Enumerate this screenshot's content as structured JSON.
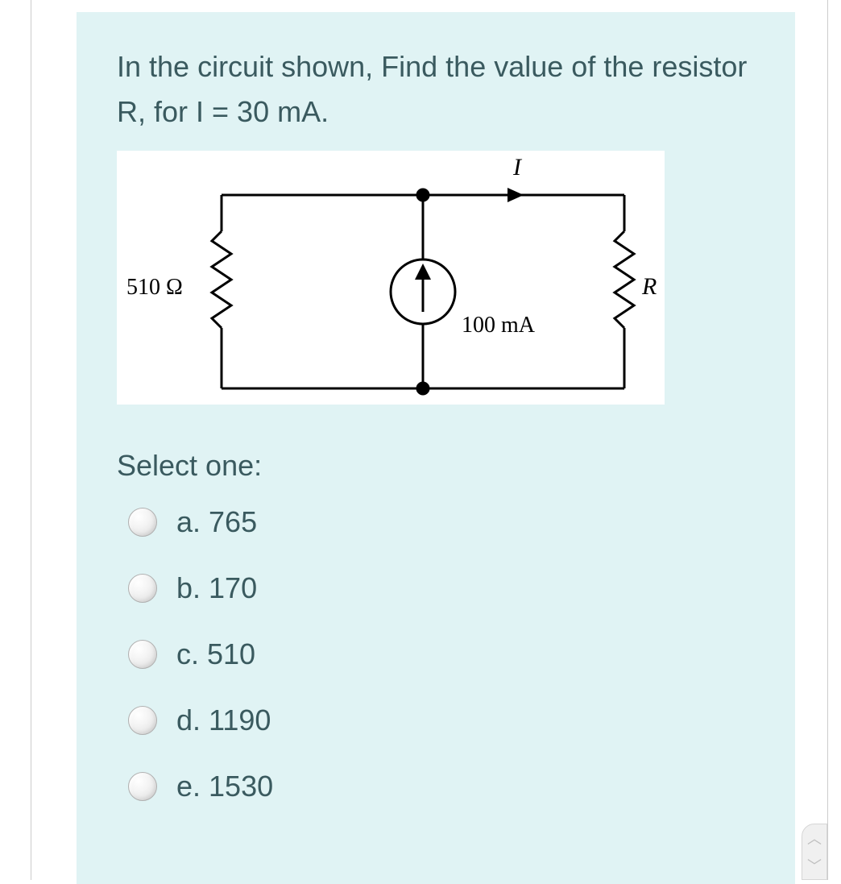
{
  "question": {
    "text": "In the circuit shown, Find the value of the resistor R, for I = 30 mA.",
    "text_color": "#3a5a5f",
    "text_fontsize": 36,
    "card_background": "#e0f3f4"
  },
  "diagram": {
    "type": "circuit",
    "background_color": "#ffffff",
    "stroke_color": "#000000",
    "stroke_width": 3,
    "labels": {
      "left_resistor": "510 Ω",
      "right_resistor": "R",
      "source": "100 mA",
      "current_arrow": "I"
    },
    "label_font": "serif",
    "label_fontsize_main": 26,
    "label_fontsize_italic": 28
  },
  "select_label": "Select one:",
  "options": [
    {
      "letter": "a",
      "value": "765",
      "selected": false
    },
    {
      "letter": "b",
      "value": "170",
      "selected": false
    },
    {
      "letter": "c",
      "value": "510",
      "selected": false
    },
    {
      "letter": "d",
      "value": "1190",
      "selected": false
    },
    {
      "letter": "e",
      "value": "1530",
      "selected": false
    }
  ],
  "option_text_color": "#3a5a5f",
  "option_fontsize": 36
}
